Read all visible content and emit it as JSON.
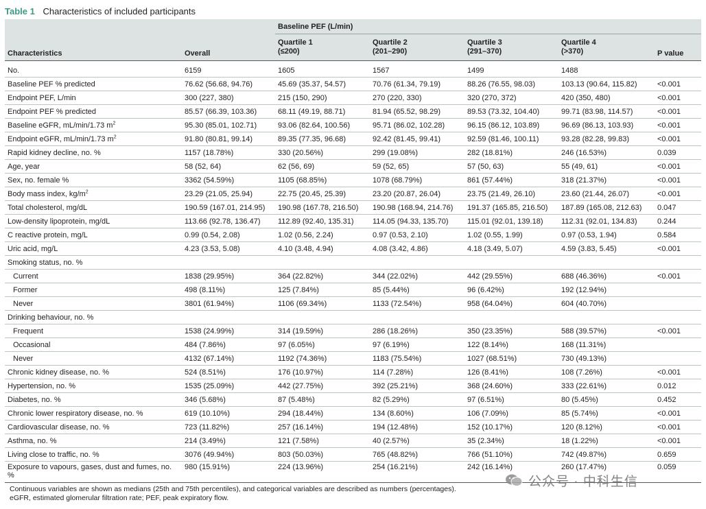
{
  "caption": {
    "label": "Table 1",
    "title": "Characteristics of included participants"
  },
  "header": {
    "group_label": "Baseline PEF (L/min)",
    "col_characteristics": "Characteristics",
    "col_overall": "Overall",
    "quartiles": [
      {
        "name": "Quartile 1",
        "range": "(≤200)"
      },
      {
        "name": "Quartile 2",
        "range": "(201–290)"
      },
      {
        "name": "Quartile 3",
        "range": "(291–370)"
      },
      {
        "name": "Quartile 4",
        "range": "(>370)"
      }
    ],
    "col_p": "P value"
  },
  "rows": [
    {
      "label": "No.",
      "overall": "6159",
      "q1": "1605",
      "q2": "1567",
      "q3": "1499",
      "q4": "1488",
      "p": ""
    },
    {
      "label": "Baseline PEF % predicted",
      "overall": "76.62 (56.68, 94.76)",
      "q1": "45.69 (35.37, 54.57)",
      "q2": "70.76 (61.34, 79.19)",
      "q3": "88.26 (76.55, 98.03)",
      "q4": "103.13 (90.64, 115.82)",
      "p": "<0.001"
    },
    {
      "label": "Endpoint PEF, L/min",
      "overall": "300 (227, 380)",
      "q1": "215 (150, 290)",
      "q2": "270 (220, 330)",
      "q3": "320 (270, 372)",
      "q4": "420 (350, 480)",
      "p": "<0.001"
    },
    {
      "label": "Endpoint PEF % predicted",
      "overall": "85.57 (66.39, 103.36)",
      "q1": "68.11 (49.19, 88.71)",
      "q2": "81.94 (65.52, 98.29)",
      "q3": "89.53 (73.32, 104.40)",
      "q4": "99.71 (83.98, 114.57)",
      "p": "<0.001"
    },
    {
      "label": "Baseline eGFR, mL/min/1.73 m",
      "sup": "2",
      "overall": "95.30 (85.01, 102.71)",
      "q1": "93.06 (82.64, 100.56)",
      "q2": "95.71 (86.02, 102.28)",
      "q3": "96.15 (86.12, 103.89)",
      "q4": "96.69 (86.13, 103.93)",
      "p": "<0.001"
    },
    {
      "label": "Endpoint eGFR, mL/min/1.73 m",
      "sup": "2",
      "overall": "91.80 (80.81, 99.14)",
      "q1": "89.35 (77.35, 96.68)",
      "q2": "92.42 (81.45, 99.41)",
      "q3": "92.59 (81.46, 100.11)",
      "q4": "93.28 (82.28, 99.83)",
      "p": "<0.001"
    },
    {
      "label": "Rapid kidney decline, no. %",
      "overall": "1157 (18.78%)",
      "q1": "330 (20.56%)",
      "q2": "299 (19.08%)",
      "q3": "282 (18.81%)",
      "q4": "246 (16.53%)",
      "p": "0.039"
    },
    {
      "label": "Age, year",
      "overall": "58 (52, 64)",
      "q1": "62 (56, 69)",
      "q2": "59 (52, 65)",
      "q3": "57 (50, 63)",
      "q4": "55 (49, 61)",
      "p": "<0.001"
    },
    {
      "label": "Sex, no. female %",
      "overall": "3362 (54.59%)",
      "q1": "1105 (68.85%)",
      "q2": "1078 (68.79%)",
      "q3": "861 (57.44%)",
      "q4": "318 (21.37%)",
      "p": "<0.001"
    },
    {
      "label": "Body mass index, kg/m",
      "sup": "2",
      "overall": "23.29 (21.05, 25.94)",
      "q1": "22.75 (20.45, 25.39)",
      "q2": "23.20 (20.87, 26.04)",
      "q3": "23.75 (21.49, 26.10)",
      "q4": "23.60 (21.44, 26.07)",
      "p": "<0.001"
    },
    {
      "label": "Total cholesterol, mg/dL",
      "overall": "190.59 (167.01, 214.95)",
      "q1": "190.98 (167.78, 216.50)",
      "q2": "190.98 (168.94, 214.76)",
      "q3": "191.37 (165.85, 216.50)",
      "q4": "187.89 (165.08, 212.63)",
      "p": "0.047"
    },
    {
      "label": "Low-density lipoprotein, mg/dL",
      "overall": "113.66 (92.78, 136.47)",
      "q1": "112.89 (92.40, 135.31)",
      "q2": "114.05 (94.33, 135.70)",
      "q3": "115.01 (92.01, 139.18)",
      "q4": "112.31 (92.01, 134.83)",
      "p": "0.244"
    },
    {
      "label": "C reactive protein, mg/L",
      "overall": "0.99 (0.54, 2.08)",
      "q1": "1.02 (0.56, 2.24)",
      "q2": "0.97 (0.53, 2.10)",
      "q3": "1.02 (0.55, 1.99)",
      "q4": "0.97 (0.53, 1.94)",
      "p": "0.584"
    },
    {
      "label": "Uric acid, mg/L",
      "overall": "4.23 (3.53, 5.08)",
      "q1": "4.10 (3.48, 4.94)",
      "q2": "4.08 (3.42, 4.86)",
      "q3": "4.18 (3.49, 5.07)",
      "q4": "4.59 (3.83, 5.45)",
      "p": "<0.001"
    },
    {
      "label": "Smoking status, no. %",
      "overall": "",
      "q1": "",
      "q2": "",
      "q3": "",
      "q4": "",
      "p": ""
    },
    {
      "label": "Current",
      "indent": true,
      "overall": "1838 (29.95%)",
      "q1": "364 (22.82%)",
      "q2": "344 (22.02%)",
      "q3": "442 (29.55%)",
      "q4": "688 (46.36%)",
      "p": "<0.001"
    },
    {
      "label": "Former",
      "indent": true,
      "overall": "498 (8.11%)",
      "q1": "125 (7.84%)",
      "q2": "85 (5.44%)",
      "q3": "96 (6.42%)",
      "q4": "192 (12.94%)",
      "p": ""
    },
    {
      "label": "Never",
      "indent": true,
      "overall": "3801 (61.94%)",
      "q1": "1106 (69.34%)",
      "q2": "1133 (72.54%)",
      "q3": "958 (64.04%)",
      "q4": "604 (40.70%)",
      "p": ""
    },
    {
      "label": "Drinking behaviour, no. %",
      "overall": "",
      "q1": "",
      "q2": "",
      "q3": "",
      "q4": "",
      "p": ""
    },
    {
      "label": "Frequent",
      "indent": true,
      "overall": "1538 (24.99%)",
      "q1": "314 (19.59%)",
      "q2": "286 (18.26%)",
      "q3": "350 (23.35%)",
      "q4": "588 (39.57%)",
      "p": "<0.001"
    },
    {
      "label": "Occasional",
      "indent": true,
      "overall": "484 (7.86%)",
      "q1": "97 (6.05%)",
      "q2": "97 (6.19%)",
      "q3": "122 (8.14%)",
      "q4": "168 (11.31%)",
      "p": ""
    },
    {
      "label": "Never",
      "indent": true,
      "overall": "4132 (67.14%)",
      "q1": "1192 (74.36%)",
      "q2": "1183 (75.54%)",
      "q3": "1027 (68.51%)",
      "q4": "730 (49.13%)",
      "p": ""
    },
    {
      "label": "Chronic kidney disease, no. %",
      "overall": "524 (8.51%)",
      "q1": "176 (10.97%)",
      "q2": "114 (7.28%)",
      "q3": "126 (8.41%)",
      "q4": "108 (7.26%)",
      "p": "<0.001"
    },
    {
      "label": "Hypertension, no. %",
      "overall": "1535 (25.09%)",
      "q1": "442 (27.75%)",
      "q2": "392 (25.21%)",
      "q3": "368 (24.60%)",
      "q4": "333 (22.61%)",
      "p": "0.012"
    },
    {
      "label": "Diabetes, no. %",
      "overall": "346 (5.68%)",
      "q1": "87 (5.48%)",
      "q2": "82 (5.29%)",
      "q3": "97 (6.51%)",
      "q4": "80 (5.45%)",
      "p": "0.452"
    },
    {
      "label": "Chronic lower respiratory disease, no. %",
      "overall": "619 (10.10%)",
      "q1": "294 (18.44%)",
      "q2": "134 (8.60%)",
      "q3": "106 (7.09%)",
      "q4": "85 (5.74%)",
      "p": "<0.001"
    },
    {
      "label": "Cardiovascular disease, no. %",
      "overall": "723 (11.82%)",
      "q1": "257 (16.14%)",
      "q2": "194 (12.48%)",
      "q3": "152 (10.17%)",
      "q4": "120 (8.12%)",
      "p": "<0.001"
    },
    {
      "label": "Asthma, no. %",
      "overall": "214 (3.49%)",
      "q1": "121 (7.58%)",
      "q2": "40 (2.57%)",
      "q3": "35 (2.34%)",
      "q4": "18 (1.22%)",
      "p": "<0.001"
    },
    {
      "label": "Living close to traffic, no. %",
      "overall": "3076 (49.94%)",
      "q1": "803 (50.03%)",
      "q2": "765 (48.82%)",
      "q3": "766 (51.10%)",
      "q4": "742 (49.87%)",
      "p": "0.659"
    },
    {
      "label": "Exposure to vapours, gases, dust and fumes, no. %",
      "overall": "980 (15.91%)",
      "q1": "224 (13.96%)",
      "q2": "254 (16.21%)",
      "q3": "242 (16.14%)",
      "q4": "260 (17.47%)",
      "p": "0.059"
    }
  ],
  "notes": [
    "Continuous variables are shown as medians (25th and 75th percentiles), and categorical variables are described as numbers (percentages).",
    "eGFR, estimated glomerular filtration rate; PEF, peak expiratory flow."
  ],
  "watermark": {
    "text": "公众号 · 中科生信",
    "icon": "wechat-icon"
  },
  "colors": {
    "table_label": "#3d9a86",
    "header_bg": "#dde2e3",
    "rule": "#b8c6c8"
  }
}
